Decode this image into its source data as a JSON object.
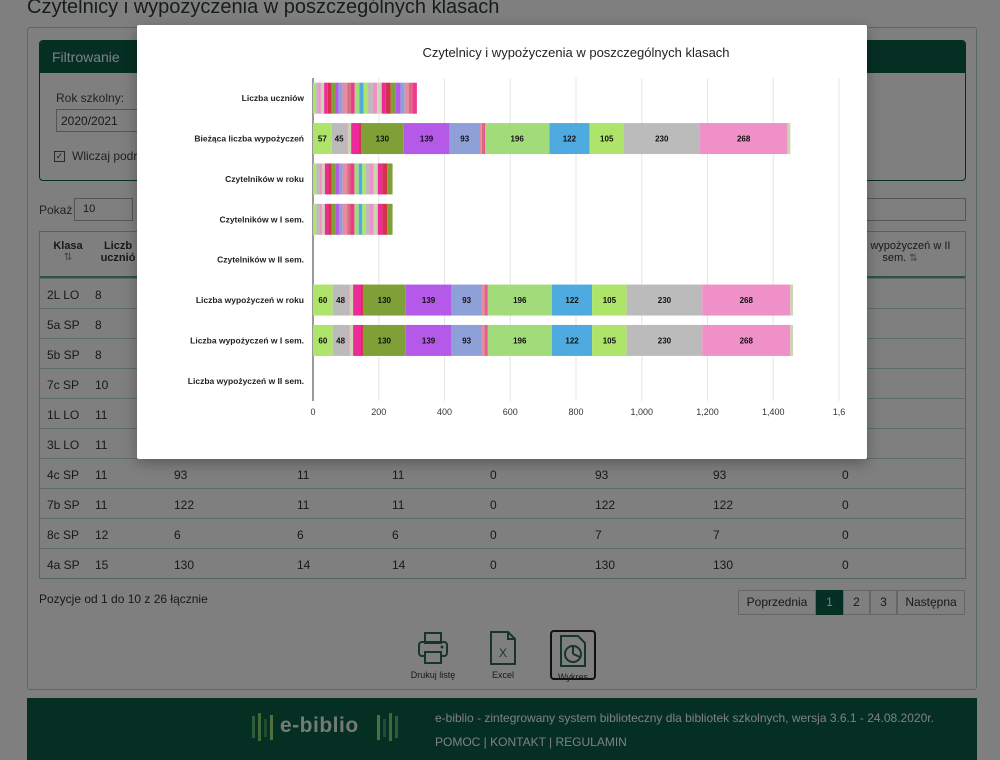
{
  "page": {
    "title": "Czytelnicy i wypożyczenia w poszczególnych klasach"
  },
  "filter": {
    "header": "Filtrowanie",
    "year_label": "Rok szkolny:",
    "year_value": "2020/2021",
    "checkbox_label": "Wliczaj podrę"
  },
  "table_controls": {
    "show_label": "Pokaż",
    "show_value": "10"
  },
  "table": {
    "header_first": "Klasa",
    "header_second": "Liczb ucznió",
    "header_last_line1": "zba wypożyczeń w II",
    "header_last_line2": "sem.",
    "rows": [
      [
        "2L LO",
        "8",
        "",
        "",
        "",
        "",
        "",
        "",
        ""
      ],
      [
        "5a SP",
        "8",
        "",
        "",
        "",
        "",
        "",
        "",
        ""
      ],
      [
        "5b SP",
        "8",
        "",
        "",
        "",
        "",
        "",
        "",
        ""
      ],
      [
        "7c SP",
        "10",
        "",
        "",
        "",
        "",
        "",
        "",
        ""
      ],
      [
        "1L LO",
        "11",
        "",
        "",
        "",
        "",
        "",
        "",
        ""
      ],
      [
        "3L LO",
        "11",
        "",
        "",
        "",
        "",
        "",
        "",
        ""
      ],
      [
        "4c SP",
        "11",
        "93",
        "11",
        "11",
        "0",
        "93",
        "93",
        "0"
      ],
      [
        "7b SP",
        "11",
        "122",
        "11",
        "11",
        "0",
        "122",
        "122",
        "0"
      ],
      [
        "8c SP",
        "12",
        "6",
        "6",
        "6",
        "0",
        "7",
        "7",
        "0"
      ],
      [
        "4a SP",
        "15",
        "130",
        "14",
        "14",
        "0",
        "130",
        "130",
        "0"
      ]
    ],
    "summary": "Pozycje od 1 do 10 z 26 łącznie"
  },
  "pagination": {
    "prev": "Poprzednia",
    "pages": [
      "1",
      "2",
      "3"
    ],
    "next": "Następna",
    "active": "1"
  },
  "tools": {
    "print": "Drukuj listę",
    "excel": "Excel",
    "chart": "Wykres"
  },
  "footer": {
    "logo": "e-biblio",
    "description": "e-biblio - zintegrowany system biblioteczny dla bibliotek szkolnych, wersja 3.6.1 - 24.08.2020r.",
    "links": "POMOC | KONTAKT | REGULAMIN"
  },
  "colors": {
    "brand": "#0b5e46",
    "palette": [
      "#aee46a",
      "#bbbbbb",
      "#f090c8",
      "#c8d7b0",
      "#ee2a9b",
      "#d4314a",
      "#7ea037",
      "#b55ae8",
      "#8fa0d8",
      "#e88aa0",
      "#d66d7d",
      "#ed3a8e",
      "#a2dc7a",
      "#4faadf"
    ]
  },
  "chart_data": {
    "type": "bar",
    "orientation": "horizontal",
    "stacked": true,
    "title": "Czytelnicy i wypożyczenia w poszczególnych klasach",
    "xlim": [
      0,
      1600
    ],
    "x_ticks": [
      "0",
      "200",
      "400",
      "600",
      "800",
      "1,000",
      "1,200",
      "1,400",
      "1,6"
    ],
    "grid": true,
    "legend": "none",
    "categories": [
      "Liczba uczniów",
      "Bieżąca liczba wypożyczeń",
      "Czytelników w roku",
      "Czytelników w I sem.",
      "Czytelników w II sem.",
      "Liczba wypożyczeń w roku",
      "Liczba wypożyczeń w I sem.",
      "Liczba wypożyczeń w II sem."
    ],
    "series": [
      {
        "values": [
          8,
          57,
          10,
          10,
          0,
          60,
          60,
          0
        ]
      },
      {
        "values": [
          8,
          45,
          9,
          9,
          0,
          48,
          48,
          0
        ]
      },
      {
        "values": [
          8,
          4,
          8,
          8,
          0,
          4,
          4,
          0
        ]
      },
      {
        "values": [
          10,
          10,
          9,
          9,
          0,
          10,
          10,
          0
        ]
      },
      {
        "values": [
          11,
          24,
          11,
          11,
          0,
          24,
          24,
          0
        ]
      },
      {
        "values": [
          11,
          6,
          10,
          10,
          0,
          6,
          6,
          0
        ]
      },
      {
        "values": [
          11,
          130,
          11,
          11,
          0,
          130,
          130,
          0
        ]
      },
      {
        "values": [
          11,
          139,
          11,
          11,
          0,
          139,
          139,
          0
        ]
      },
      {
        "values": [
          12,
          93,
          11,
          11,
          0,
          93,
          93,
          0
        ]
      },
      {
        "values": [
          15,
          6,
          14,
          14,
          0,
          7,
          7,
          0
        ]
      },
      {
        "values": [
          10,
          5,
          10,
          10,
          0,
          6,
          6,
          0
        ]
      },
      {
        "values": [
          12,
          4,
          12,
          12,
          0,
          4,
          4,
          0
        ]
      },
      {
        "values": [
          14,
          196,
          13,
          13,
          0,
          196,
          196,
          0
        ]
      },
      {
        "values": [
          13,
          122,
          11,
          11,
          0,
          122,
          122,
          0
        ]
      },
      {
        "values": [
          12,
          105,
          10,
          10,
          0,
          105,
          105,
          0
        ]
      },
      {
        "values": [
          16,
          230,
          12,
          12,
          0,
          230,
          230,
          0
        ]
      },
      {
        "values": [
          13,
          268,
          12,
          12,
          0,
          268,
          268,
          0
        ]
      },
      {
        "values": [
          14,
          8,
          13,
          13,
          0,
          8,
          8,
          0
        ]
      },
      {
        "values": [
          12,
          0,
          14,
          14,
          0,
          0,
          0,
          0
        ]
      },
      {
        "values": [
          15,
          0,
          15,
          15,
          0,
          0,
          0,
          0
        ]
      },
      {
        "values": [
          16,
          0,
          16,
          16,
          0,
          0,
          0,
          0
        ]
      },
      {
        "values": [
          14,
          0,
          0,
          0,
          0,
          0,
          0,
          0
        ]
      },
      {
        "values": [
          13,
          0,
          0,
          0,
          0,
          0,
          0,
          0
        ]
      },
      {
        "values": [
          12,
          0,
          0,
          0,
          0,
          0,
          0,
          0
        ]
      },
      {
        "values": [
          11,
          0,
          0,
          0,
          0,
          0,
          0,
          0
        ]
      },
      {
        "values": [
          14,
          0,
          0,
          0,
          0,
          0,
          0,
          0
        ]
      }
    ]
  }
}
